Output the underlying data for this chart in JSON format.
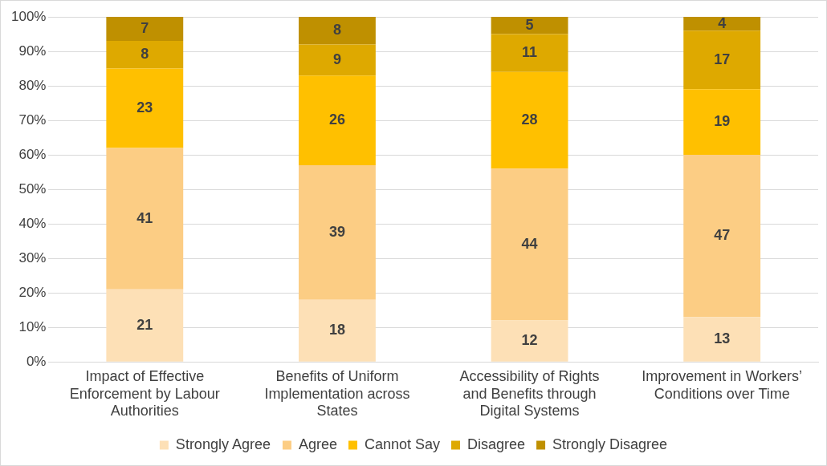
{
  "chart_data": {
    "type": "bar",
    "stacked": true,
    "data_labels": true,
    "grid": "y",
    "legend": "bottom",
    "categories": [
      "Impact of Effective Enforcement by Labour Authorities",
      "Benefits of Uniform Implementation across States",
      "Accessibility of Rights and Benefits through Digital Systems",
      "Improvement in Workers’ Conditions over Time"
    ],
    "ylim": [
      0,
      100
    ],
    "yticks": [
      {
        "value": 0,
        "label": "0%"
      },
      {
        "value": 10,
        "label": "10%"
      },
      {
        "value": 20,
        "label": "20%"
      },
      {
        "value": 30,
        "label": "30%"
      },
      {
        "value": 40,
        "label": "40%"
      },
      {
        "value": 50,
        "label": "50%"
      },
      {
        "value": 60,
        "label": "60%"
      },
      {
        "value": 70,
        "label": "70%"
      },
      {
        "value": 80,
        "label": "80%"
      },
      {
        "value": 90,
        "label": "90%"
      },
      {
        "value": 100,
        "label": "100%"
      }
    ],
    "series": [
      {
        "name": "Strongly Agree",
        "color": "#fde0b6",
        "values": [
          21,
          18,
          12,
          13
        ]
      },
      {
        "name": "Agree",
        "color": "#fccd84",
        "values": [
          41,
          39,
          44,
          47
        ]
      },
      {
        "name": "Cannot Say",
        "color": "#ffc000",
        "values": [
          23,
          26,
          28,
          19
        ]
      },
      {
        "name": "Disagree",
        "color": "#dea900",
        "values": [
          8,
          9,
          11,
          17
        ]
      },
      {
        "name": "Strongly Disagree",
        "color": "#bf9000",
        "values": [
          7,
          8,
          5,
          4
        ]
      }
    ]
  }
}
